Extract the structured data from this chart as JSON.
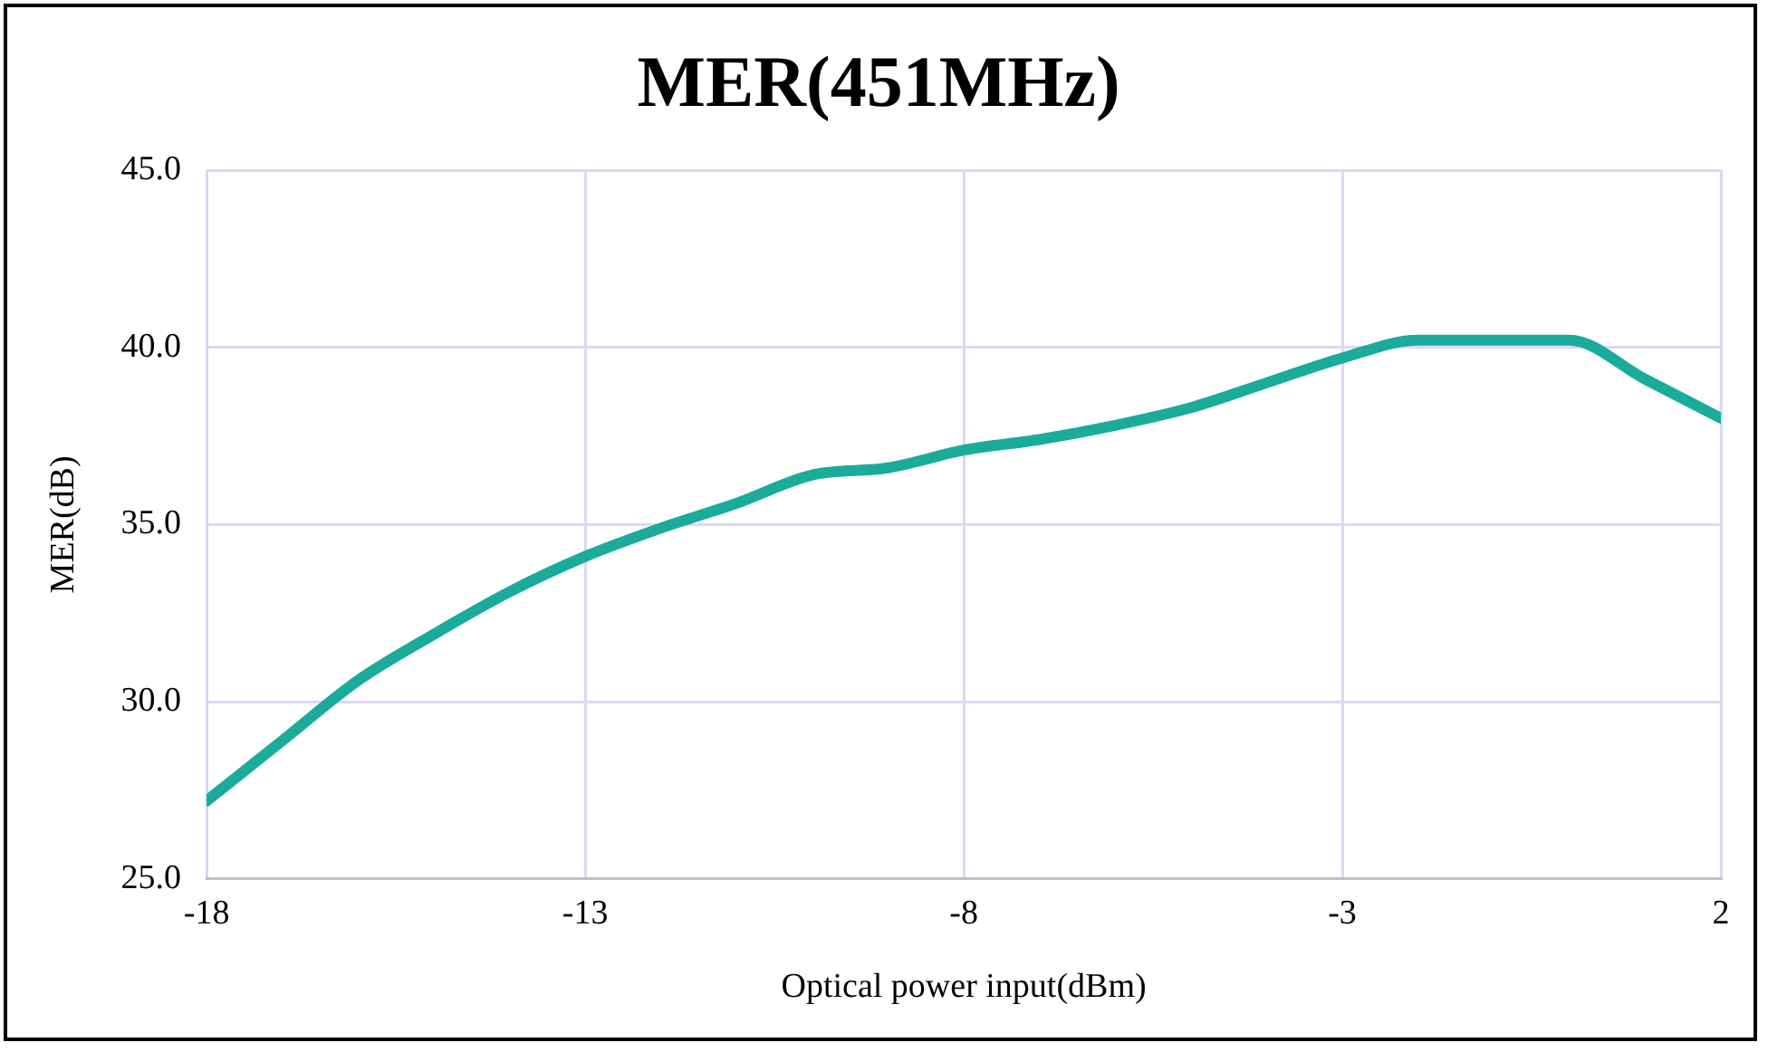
{
  "chart_data": {
    "type": "line",
    "title": "MER(451MHz)",
    "xlabel": "Optical power input(dBm)",
    "ylabel": "MER(dB)",
    "x": [
      -18,
      -17,
      -16,
      -15,
      -14,
      -13,
      -12,
      -11,
      -10,
      -9,
      -8,
      -7,
      -6,
      -5,
      -4,
      -3,
      -2,
      -1,
      0,
      1,
      2
    ],
    "series": [
      {
        "color": "#1aab9b",
        "values": [
          27.2,
          28.9,
          30.6,
          31.9,
          33.1,
          34.1,
          34.9,
          35.6,
          36.4,
          36.6,
          37.1,
          37.4,
          37.8,
          38.3,
          39.0,
          39.7,
          40.2,
          40.2,
          40.2,
          39.1,
          38.0
        ]
      }
    ],
    "xlim": [
      -18,
      2
    ],
    "xticks": [
      -18,
      -13,
      -8,
      -3,
      2
    ],
    "ylim": [
      25,
      45
    ],
    "yticks": [
      {
        "value": 25,
        "label": "25.0"
      },
      {
        "value": 30,
        "label": "30.0"
      },
      {
        "value": 35,
        "label": "35.0"
      },
      {
        "value": 40,
        "label": "40.0"
      },
      {
        "value": 45,
        "label": "45.0"
      }
    ],
    "grid": true,
    "legend": false,
    "marker": "none",
    "line_style": "solid"
  }
}
